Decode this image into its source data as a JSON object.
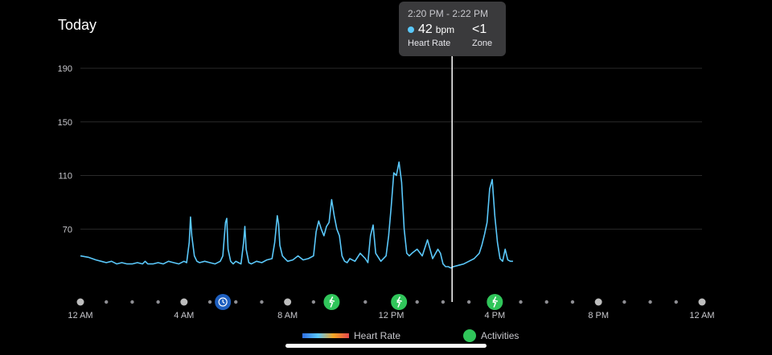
{
  "page": {
    "title": "Today"
  },
  "tooltip": {
    "time_range": "2:20 PM - 2:22 PM",
    "value": "42",
    "unit": "bpm",
    "value_label": "Heart Rate",
    "zone_value": "<1",
    "zone_label": "Zone",
    "dot_color": "#5ac8fa"
  },
  "legend": {
    "heart_rate": "Heart Rate",
    "activities": "Activities"
  },
  "colors": {
    "line": "#5ac8fa",
    "line_high": "#3d7fe8",
    "grid": "#2a2a2a",
    "activity_green": "#30c55a",
    "sleep_blue": "#1e5fbf",
    "crosshair": "#ffffff"
  },
  "markers": [
    {
      "x_hour": 5.5,
      "type": "sleep",
      "icon": "clock-icon"
    },
    {
      "x_hour": 9.7,
      "type": "activity",
      "icon": "running-icon"
    },
    {
      "x_hour": 12.3,
      "type": "activity",
      "icon": "running-icon"
    },
    {
      "x_hour": 16.0,
      "type": "activity",
      "icon": "running-icon"
    }
  ],
  "chart_data": {
    "type": "line",
    "title": "",
    "xlabel": "",
    "ylabel": "",
    "ylim": [
      30,
      190
    ],
    "xlim": [
      0,
      24
    ],
    "yticks": [
      70,
      110,
      150,
      190
    ],
    "xtick_labels": [
      {
        "hour": 0,
        "label": "12 AM"
      },
      {
        "hour": 4,
        "label": "4 AM"
      },
      {
        "hour": 8,
        "label": "8 AM"
      },
      {
        "hour": 12,
        "label": "12 PM"
      },
      {
        "hour": 16,
        "label": "4 PM"
      },
      {
        "hour": 20,
        "label": "8 PM"
      },
      {
        "hour": 24,
        "label": "12 AM"
      }
    ],
    "grid": true,
    "crosshair_hour": 14.35,
    "series": [
      {
        "name": "Heart Rate",
        "x": [
          0.0,
          0.3,
          0.6,
          0.8,
          1.0,
          1.2,
          1.4,
          1.6,
          1.8,
          2.0,
          2.2,
          2.4,
          2.5,
          2.6,
          2.8,
          3.0,
          3.2,
          3.4,
          3.6,
          3.8,
          4.0,
          4.1,
          4.2,
          4.25,
          4.3,
          4.4,
          4.5,
          4.6,
          4.8,
          5.0,
          5.2,
          5.4,
          5.5,
          5.6,
          5.65,
          5.7,
          5.8,
          5.9,
          6.0,
          6.1,
          6.2,
          6.3,
          6.35,
          6.4,
          6.5,
          6.6,
          6.8,
          7.0,
          7.2,
          7.4,
          7.5,
          7.6,
          7.65,
          7.7,
          7.8,
          7.9,
          8.0,
          8.2,
          8.4,
          8.6,
          8.8,
          9.0,
          9.1,
          9.2,
          9.3,
          9.4,
          9.5,
          9.6,
          9.7,
          9.8,
          9.9,
          10.0,
          10.1,
          10.2,
          10.3,
          10.4,
          10.6,
          10.8,
          11.0,
          11.1,
          11.2,
          11.3,
          11.4,
          11.6,
          11.8,
          11.9,
          12.0,
          12.1,
          12.2,
          12.3,
          12.4,
          12.5,
          12.6,
          12.7,
          12.8,
          13.0,
          13.2,
          13.4,
          13.5,
          13.6,
          13.8,
          13.9,
          14.0,
          14.1,
          14.2,
          14.3,
          14.4,
          14.6,
          14.8,
          15.0,
          15.2,
          15.4,
          15.5,
          15.6,
          15.7,
          15.8,
          15.9,
          16.0,
          16.1,
          16.2,
          16.3,
          16.4,
          16.5,
          16.6,
          16.7
        ],
        "values": [
          50,
          49,
          47,
          46,
          45,
          46,
          44,
          45,
          44,
          44,
          45,
          44,
          46,
          44,
          44,
          45,
          44,
          46,
          45,
          44,
          46,
          45,
          60,
          79,
          65,
          50,
          46,
          45,
          46,
          45,
          44,
          46,
          50,
          75,
          78,
          55,
          46,
          44,
          46,
          45,
          44,
          60,
          72,
          55,
          45,
          44,
          46,
          45,
          47,
          48,
          60,
          80,
          74,
          58,
          50,
          48,
          46,
          47,
          50,
          47,
          48,
          50,
          68,
          76,
          70,
          65,
          72,
          75,
          92,
          80,
          70,
          65,
          50,
          46,
          45,
          48,
          46,
          52,
          48,
          45,
          65,
          73,
          52,
          46,
          50,
          65,
          87,
          112,
          110,
          120,
          105,
          70,
          52,
          50,
          52,
          55,
          50,
          62,
          55,
          48,
          55,
          52,
          44,
          42,
          42,
          41,
          42,
          43,
          44,
          46,
          48,
          52,
          58,
          66,
          75,
          100,
          107,
          80,
          60,
          48,
          46,
          55,
          47,
          46,
          46
        ]
      }
    ]
  }
}
